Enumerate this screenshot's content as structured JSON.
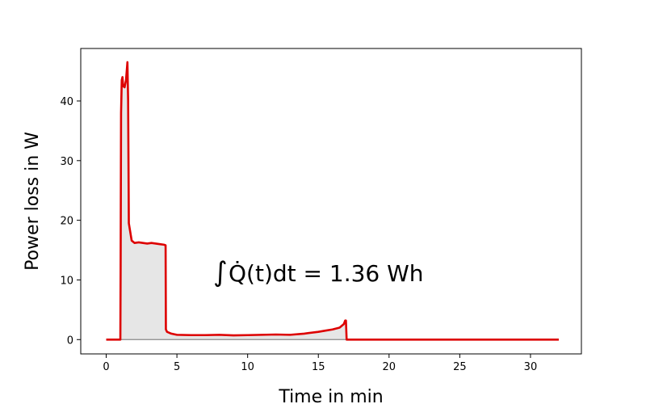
{
  "chart_data": {
    "type": "area",
    "xlabel": "Time in min",
    "ylabel": "Power loss in W",
    "xlim": [
      -1.8,
      33.6
    ],
    "ylim": [
      -2.4,
      48.8
    ],
    "xticks": [
      0,
      5,
      10,
      15,
      20,
      25,
      30
    ],
    "yticks": [
      0,
      10,
      20,
      30,
      40
    ],
    "grid": false,
    "annotation": {
      "prefix": "∫",
      "expression": "Q̇(t)dt = 1.36 Wh",
      "x": 7.8,
      "y": 10
    },
    "colors": {
      "line": "#dd0000",
      "fill": "#e6e6e6",
      "baseline": "#888888"
    },
    "series": [
      {
        "x": [
          0,
          1.0,
          1.02,
          1.05,
          1.1,
          1.15,
          1.2,
          1.3,
          1.4,
          1.5,
          1.55,
          1.6,
          1.8,
          2.0,
          2.3,
          2.6,
          2.9,
          3.2,
          3.5,
          3.8,
          4.1,
          4.2,
          4.22,
          4.3,
          4.6,
          5.0,
          6.0,
          7.0,
          8.0,
          9.0,
          10.0,
          11.0,
          12.0,
          13.0,
          14.0,
          15.0,
          15.5,
          16.0,
          16.5,
          16.8,
          16.9,
          16.95,
          17.0,
          18.0,
          20.0,
          25.0,
          30.0,
          32.0
        ],
        "y": [
          0,
          0,
          12.0,
          38.0,
          43.5,
          44.0,
          42.5,
          42.3,
          43.5,
          46.5,
          40.0,
          19.5,
          16.6,
          16.2,
          16.3,
          16.2,
          16.1,
          16.2,
          16.1,
          16.0,
          15.9,
          15.8,
          1.7,
          1.3,
          1.0,
          0.8,
          0.75,
          0.75,
          0.8,
          0.7,
          0.75,
          0.8,
          0.85,
          0.8,
          1.0,
          1.3,
          1.5,
          1.7,
          2.0,
          2.6,
          3.2,
          3.2,
          0,
          0,
          0,
          0,
          0,
          0
        ]
      }
    ],
    "shaded_region": [
      1.0,
      17.0
    ]
  }
}
